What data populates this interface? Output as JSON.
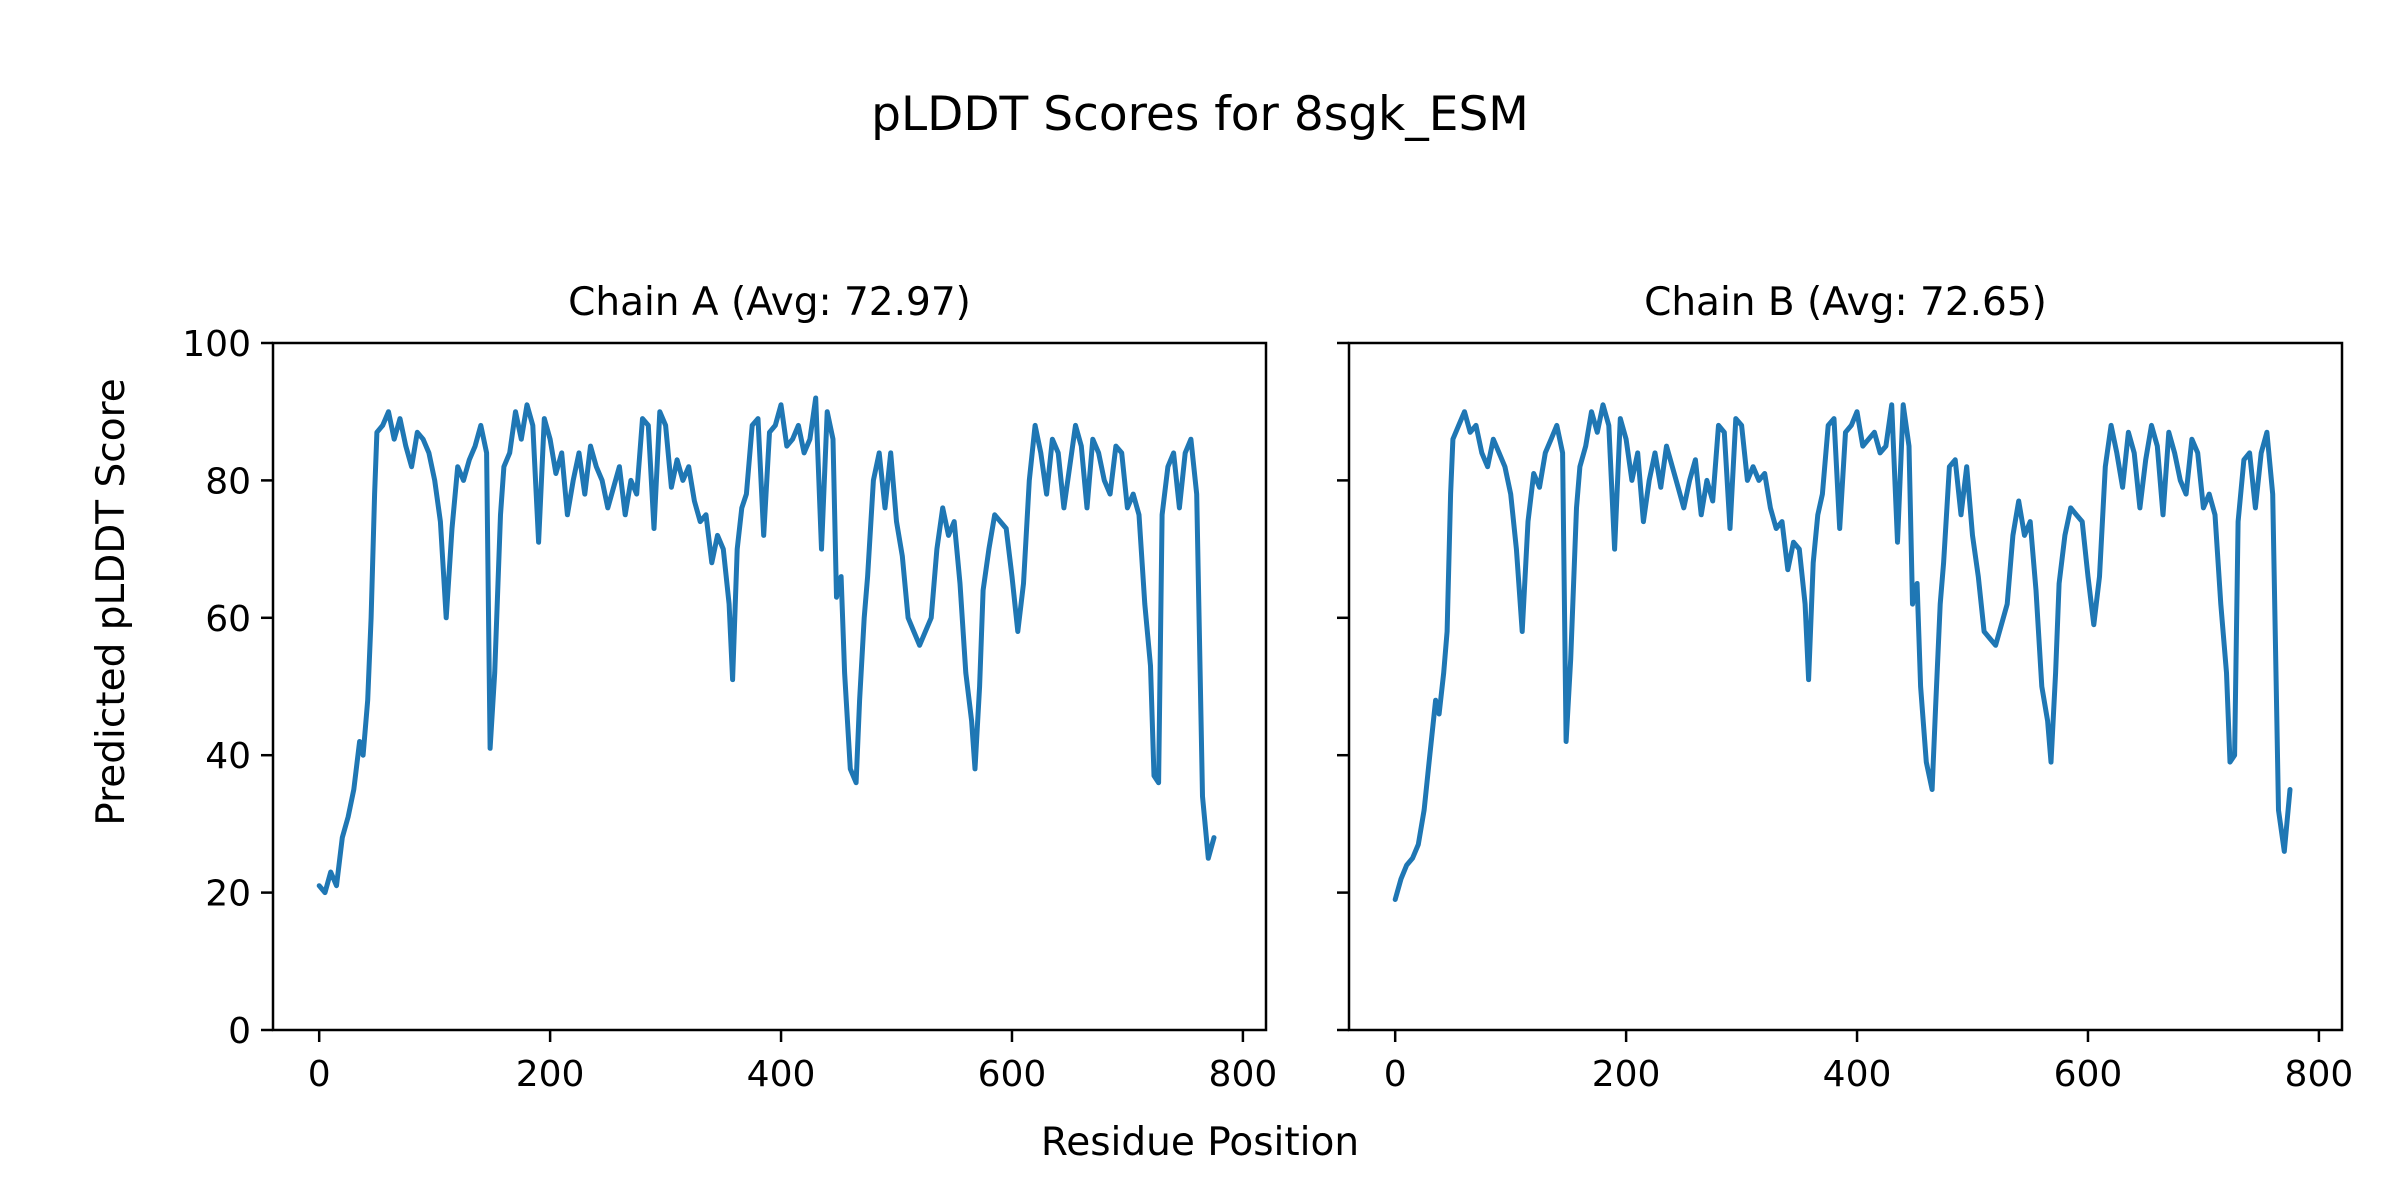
{
  "figure": {
    "title": "pLDDT Scores for 8sgk_ESM",
    "xlabel": "Residue Position",
    "ylabel": "Predicted pLDDT Score"
  },
  "colors": {
    "line": "#1f77b4"
  },
  "chart_data": [
    {
      "type": "line",
      "title": "Chain A (Avg: 72.97)",
      "xlim": [
        -40,
        820
      ],
      "ylim": [
        0,
        100
      ],
      "xticks": [
        0,
        200,
        400,
        600,
        800
      ],
      "yticks": [
        0,
        20,
        40,
        60,
        80,
        100
      ],
      "grid": false,
      "series": [
        {
          "x": [
            0,
            5,
            10,
            15,
            20,
            25,
            30,
            35,
            38,
            42,
            45,
            48,
            50,
            55,
            60,
            65,
            70,
            75,
            80,
            85,
            90,
            95,
            100,
            105,
            110,
            115,
            120,
            125,
            130,
            135,
            140,
            145,
            148,
            152,
            157,
            160,
            165,
            170,
            175,
            180,
            185,
            190,
            195,
            200,
            205,
            210,
            215,
            220,
            225,
            230,
            235,
            240,
            245,
            250,
            255,
            260,
            265,
            270,
            275,
            280,
            285,
            290,
            295,
            300,
            305,
            310,
            315,
            320,
            325,
            330,
            335,
            340,
            345,
            350,
            355,
            358,
            362,
            366,
            370,
            375,
            380,
            385,
            390,
            395,
            400,
            405,
            410,
            415,
            420,
            425,
            430,
            435,
            440,
            445,
            448,
            452,
            455,
            460,
            465,
            468,
            472,
            475,
            480,
            485,
            490,
            495,
            500,
            505,
            510,
            515,
            520,
            525,
            530,
            535,
            540,
            545,
            550,
            555,
            560,
            565,
            568,
            572,
            575,
            580,
            585,
            590,
            595,
            600,
            605,
            610,
            615,
            620,
            625,
            630,
            635,
            640,
            645,
            650,
            655,
            660,
            665,
            670,
            675,
            680,
            685,
            690,
            695,
            700,
            705,
            710,
            715,
            720,
            723,
            727,
            730,
            735,
            740,
            745,
            750,
            755,
            760,
            765,
            770,
            775
          ],
          "y": [
            21,
            20,
            23,
            21,
            28,
            31,
            35,
            42,
            40,
            48,
            60,
            78,
            87,
            88,
            90,
            86,
            89,
            85,
            82,
            87,
            86,
            84,
            80,
            74,
            60,
            73,
            82,
            80,
            83,
            85,
            88,
            84,
            41,
            52,
            75,
            82,
            84,
            90,
            86,
            91,
            88,
            71,
            89,
            86,
            81,
            84,
            75,
            80,
            84,
            78,
            85,
            82,
            80,
            76,
            79,
            82,
            75,
            80,
            78,
            89,
            88,
            73,
            90,
            88,
            79,
            83,
            80,
            82,
            77,
            74,
            75,
            68,
            72,
            70,
            62,
            51,
            70,
            76,
            78,
            88,
            89,
            72,
            87,
            88,
            91,
            85,
            86,
            88,
            84,
            86,
            92,
            70,
            90,
            86,
            63,
            66,
            52,
            38,
            36,
            48,
            60,
            66,
            80,
            84,
            76,
            84,
            74,
            69,
            60,
            58,
            56,
            58,
            60,
            70,
            76,
            72,
            74,
            65,
            52,
            45,
            38,
            50,
            64,
            70,
            75,
            74,
            73,
            66,
            58,
            65,
            80,
            88,
            84,
            78,
            86,
            84,
            76,
            82,
            88,
            85,
            76,
            86,
            84,
            80,
            78,
            85,
            84,
            76,
            78,
            75,
            62,
            53,
            37,
            36,
            75,
            82,
            84,
            76,
            84,
            86,
            78,
            34,
            25,
            28
          ]
        }
      ]
    },
    {
      "type": "line",
      "title": "Chain B (Avg: 72.65)",
      "xlim": [
        -40,
        820
      ],
      "ylim": [
        0,
        100
      ],
      "xticks": [
        0,
        200,
        400,
        600,
        800
      ],
      "yticks": [
        0,
        20,
        40,
        60,
        80,
        100
      ],
      "grid": false,
      "series": [
        {
          "x": [
            0,
            5,
            10,
            15,
            20,
            25,
            30,
            35,
            38,
            42,
            45,
            48,
            50,
            55,
            60,
            65,
            70,
            75,
            80,
            85,
            90,
            95,
            100,
            105,
            110,
            115,
            120,
            125,
            130,
            135,
            140,
            145,
            148,
            152,
            157,
            160,
            165,
            170,
            175,
            180,
            185,
            190,
            195,
            200,
            205,
            210,
            215,
            220,
            225,
            230,
            235,
            240,
            245,
            250,
            255,
            260,
            265,
            270,
            275,
            280,
            285,
            290,
            295,
            300,
            305,
            310,
            315,
            320,
            325,
            330,
            335,
            340,
            345,
            350,
            355,
            358,
            362,
            366,
            370,
            375,
            380,
            385,
            390,
            395,
            400,
            405,
            410,
            415,
            420,
            425,
            430,
            435,
            440,
            445,
            448,
            452,
            455,
            460,
            465,
            468,
            472,
            475,
            480,
            485,
            490,
            495,
            500,
            505,
            510,
            515,
            520,
            525,
            530,
            535,
            540,
            545,
            550,
            555,
            560,
            565,
            568,
            572,
            575,
            580,
            585,
            590,
            595,
            600,
            605,
            610,
            615,
            620,
            625,
            630,
            635,
            640,
            645,
            650,
            655,
            660,
            665,
            670,
            675,
            680,
            685,
            690,
            695,
            700,
            705,
            710,
            715,
            720,
            723,
            727,
            730,
            735,
            740,
            745,
            750,
            755,
            760,
            765,
            770,
            775
          ],
          "y": [
            19,
            22,
            24,
            25,
            27,
            32,
            40,
            48,
            46,
            52,
            58,
            78,
            86,
            88,
            90,
            87,
            88,
            84,
            82,
            86,
            84,
            82,
            78,
            70,
            58,
            74,
            81,
            79,
            84,
            86,
            88,
            84,
            42,
            54,
            76,
            82,
            85,
            90,
            87,
            91,
            88,
            70,
            89,
            86,
            80,
            84,
            74,
            80,
            84,
            79,
            85,
            82,
            79,
            76,
            80,
            83,
            75,
            80,
            77,
            88,
            87,
            73,
            89,
            88,
            80,
            82,
            80,
            81,
            76,
            73,
            74,
            67,
            71,
            70,
            62,
            51,
            68,
            75,
            78,
            88,
            89,
            73,
            87,
            88,
            90,
            85,
            86,
            87,
            84,
            85,
            91,
            71,
            91,
            85,
            62,
            65,
            50,
            39,
            35,
            47,
            62,
            68,
            82,
            83,
            75,
            82,
            72,
            66,
            58,
            57,
            56,
            59,
            62,
            72,
            77,
            72,
            74,
            64,
            50,
            45,
            39,
            52,
            65,
            72,
            76,
            75,
            74,
            66,
            59,
            66,
            82,
            88,
            84,
            79,
            87,
            84,
            76,
            83,
            88,
            85,
            75,
            87,
            84,
            80,
            78,
            86,
            84,
            76,
            78,
            75,
            62,
            52,
            39,
            40,
            74,
            83,
            84,
            76,
            84,
            87,
            78,
            32,
            26,
            35
          ]
        }
      ]
    }
  ]
}
